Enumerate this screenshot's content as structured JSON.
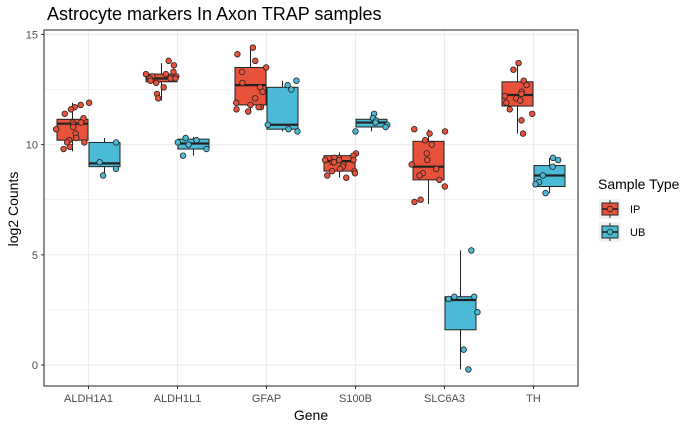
{
  "chart_data": {
    "type": "boxplot",
    "title": "Astrocyte markers In Axon TRAP samples",
    "xlabel": "Gene",
    "ylabel": "log2 Counts",
    "ylim": [
      -0.95,
      15.2
    ],
    "yticks": [
      0,
      5,
      10,
      15
    ],
    "categories": [
      "ALDH1A1",
      "ALDH1L1",
      "GFAP",
      "S100B",
      "SLC6A3",
      "TH"
    ],
    "grid": true,
    "legend": {
      "title": "Sample Type",
      "placement": "right",
      "entries": [
        "IP",
        "UB"
      ]
    },
    "colors": {
      "IP": "#e8523a",
      "UB": "#4bbad6",
      "outline": "#222222",
      "grid": "#ebebeb"
    },
    "series": [
      {
        "name": "IP",
        "boxes": [
          {
            "category": "ALDH1A1",
            "min": 9.7,
            "q1": 10.2,
            "median": 10.95,
            "q3": 11.15,
            "max": 11.9
          },
          {
            "category": "ALDH1L1",
            "min": 12.0,
            "q1": 12.85,
            "median": 13.0,
            "q3": 13.2,
            "max": 13.7
          },
          {
            "category": "GFAP",
            "min": 11.5,
            "q1": 11.8,
            "median": 12.7,
            "q3": 13.5,
            "max": 14.4
          },
          {
            "category": "S100B",
            "min": 8.5,
            "q1": 8.8,
            "median": 9.25,
            "q3": 9.5,
            "max": 9.65
          },
          {
            "category": "SLC6A3",
            "min": 7.3,
            "q1": 8.4,
            "median": 9.0,
            "q3": 10.15,
            "max": 10.7
          },
          {
            "category": "TH",
            "min": 10.5,
            "q1": 11.75,
            "median": 12.25,
            "q3": 12.85,
            "max": 13.8
          }
        ],
        "points": [
          {
            "category": "ALDH1A1",
            "values": [
              11.8,
              11.7,
              11.6,
              11.4,
              11.2,
              11.0,
              11.0,
              10.9,
              10.8,
              10.7,
              10.5,
              10.3,
              10.2,
              10.1,
              10.1,
              9.9,
              9.8,
              11.9
            ]
          },
          {
            "category": "ALDH1L1",
            "values": [
              13.8,
              13.6,
              13.3,
              13.2,
              13.2,
              13.1,
              13.1,
              13.0,
              13.0,
              13.0,
              12.9,
              12.8,
              12.6,
              12.3,
              12.1
            ]
          },
          {
            "category": "GFAP",
            "values": [
              14.4,
              14.1,
              13.8,
              13.5,
              13.3,
              12.8,
              12.6,
              12.4,
              12.1,
              11.9,
              11.8,
              11.7,
              11.7,
              11.6,
              11.5
            ]
          },
          {
            "category": "S100B",
            "values": [
              9.6,
              9.5,
              9.4,
              9.4,
              9.3,
              9.3,
              9.3,
              9.2,
              9.2,
              9.1,
              9.0,
              8.9,
              8.8,
              8.8,
              8.7,
              8.6,
              8.5
            ]
          },
          {
            "category": "SLC6A3",
            "values": [
              10.7,
              10.6,
              10.5,
              10.2,
              10.0,
              9.6,
              9.3,
              9.1,
              8.9,
              8.7,
              8.6,
              8.4,
              8.1,
              7.5,
              7.4
            ]
          },
          {
            "category": "TH",
            "values": [
              13.7,
              13.4,
              12.9,
              12.7,
              12.4,
              12.3,
              12.2,
              12.1,
              12.0,
              11.9,
              11.6,
              11.4,
              11.1,
              10.5
            ]
          }
        ]
      },
      {
        "name": "UB",
        "boxes": [
          {
            "category": "ALDH1A1",
            "min": 8.6,
            "q1": 9.0,
            "median": 9.15,
            "q3": 10.1,
            "max": 10.3
          },
          {
            "category": "ALDH1L1",
            "min": 9.5,
            "q1": 9.8,
            "median": 10.05,
            "q3": 10.25,
            "max": 10.35
          },
          {
            "category": "GFAP",
            "min": 10.6,
            "q1": 10.7,
            "median": 10.9,
            "q3": 12.6,
            "max": 12.9
          },
          {
            "category": "S100B",
            "min": 10.6,
            "q1": 10.8,
            "median": 11.0,
            "q3": 11.15,
            "max": 11.4
          },
          {
            "category": "SLC6A3",
            "min": -0.2,
            "q1": 1.6,
            "median": 2.95,
            "q3": 3.1,
            "max": 5.2
          },
          {
            "category": "TH",
            "min": 7.8,
            "q1": 8.1,
            "median": 8.6,
            "q3": 9.05,
            "max": 9.4
          }
        ],
        "points": [
          {
            "category": "ALDH1A1",
            "values": [
              10.1,
              9.2,
              8.9,
              8.6
            ]
          },
          {
            "category": "ALDH1L1",
            "values": [
              10.3,
              10.2,
              10.1,
              10.0,
              9.8,
              9.5
            ]
          },
          {
            "category": "GFAP",
            "values": [
              12.9,
              12.7,
              12.5,
              10.9,
              10.7,
              10.6
            ]
          },
          {
            "category": "S100B",
            "values": [
              11.4,
              11.2,
              11.1,
              11.0,
              10.9,
              10.8,
              10.6
            ]
          },
          {
            "category": "SLC6A3",
            "values": [
              5.2,
              3.1,
              3.1,
              3.0,
              2.4,
              0.7,
              -0.2
            ]
          },
          {
            "category": "TH",
            "values": [
              9.4,
              9.3,
              9.0,
              8.6,
              8.3,
              8.2,
              7.8
            ]
          }
        ]
      }
    ]
  }
}
